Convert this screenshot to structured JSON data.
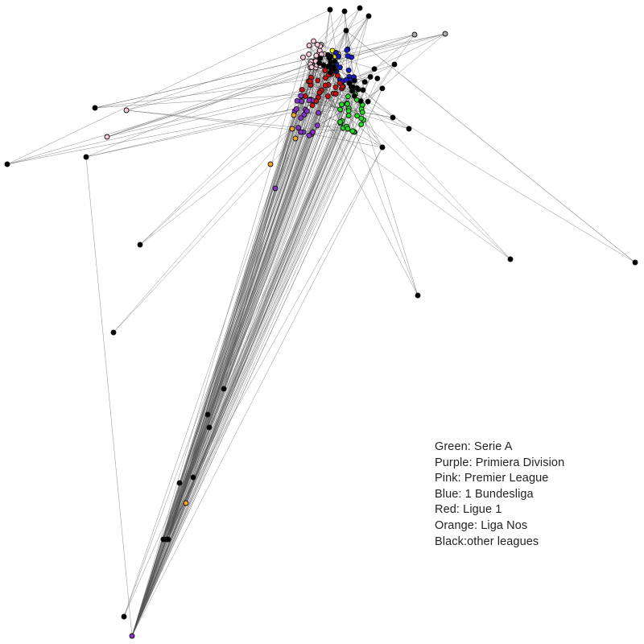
{
  "colors": {
    "edge": "#555555",
    "node_stroke": "#111111",
    "background": "#ffffff"
  },
  "legend": {
    "entries": [
      {
        "label": "Green: Serie A",
        "group": "serie_a",
        "color": "#22dd22"
      },
      {
        "label": "Purple: Primiera Division",
        "group": "primera",
        "color": "#8833cc"
      },
      {
        "label": "Pink: Premier League",
        "group": "premier",
        "color": "#f6c8d8"
      },
      {
        "label": "Blue: 1 Bundesliga",
        "group": "bundesliga",
        "color": "#1a1acc"
      },
      {
        "label": "Red: Ligue 1",
        "group": "ligue1",
        "color": "#cc1111"
      },
      {
        "label": "Orange: Liga Nos",
        "group": "liga_nos",
        "color": "#f5a623"
      },
      {
        "label": "Black:other leagues",
        "group": "other",
        "color": "#000000"
      }
    ],
    "extra_node_colors": {
      "yellow": "#f3f300",
      "grey": "#aaaaaa"
    }
  }
}
